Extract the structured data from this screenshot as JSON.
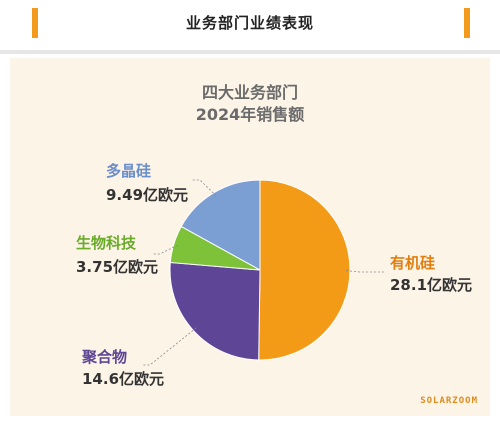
{
  "header": {
    "title": "业务部门业绩表现"
  },
  "brand": "SOLARZOOM",
  "chart_data": {
    "type": "pie",
    "title_lines": [
      "四大业务部门",
      "2024年销售额"
    ],
    "unit": "亿欧元",
    "slices": [
      {
        "name": "有机硅",
        "value": 28.1,
        "value_label": "28.1亿欧元",
        "color": "#f39a16",
        "name_color": "#e07e12"
      },
      {
        "name": "聚合物",
        "value": 14.6,
        "value_label": "14.6亿欧元",
        "color": "#5e4596",
        "name_color": "#5e4596"
      },
      {
        "name": "生物科技",
        "value": 3.75,
        "value_label": "3.75亿欧元",
        "color": "#7ec23a",
        "name_color": "#6aab2a"
      },
      {
        "name": "多晶硅",
        "value": 9.49,
        "value_label": "9.49亿欧元",
        "color": "#7c9fd3",
        "name_color": "#6a8ecb"
      }
    ]
  }
}
